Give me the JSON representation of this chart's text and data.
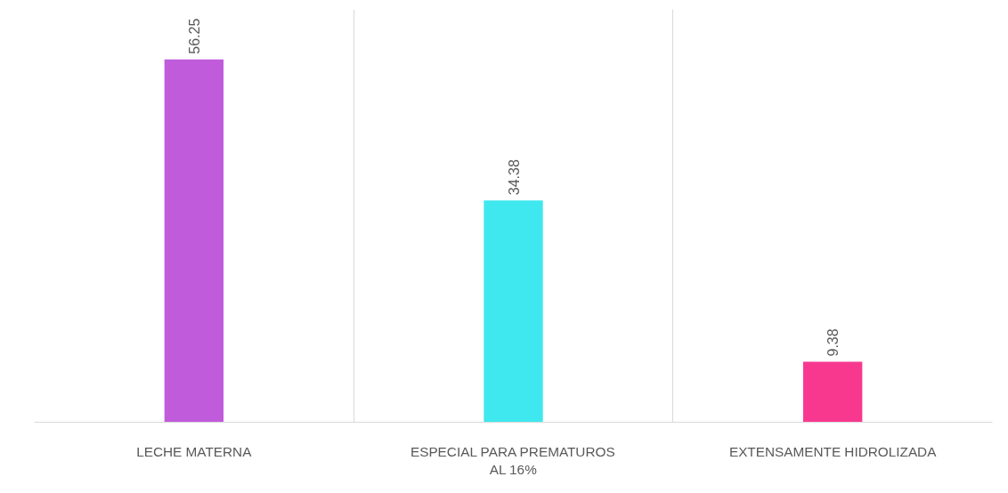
{
  "chart_data": {
    "type": "bar",
    "categories": [
      "LECHE MATERNA",
      "ESPECIAL PARA PREMATUROS AL 16%",
      "EXTENSAMENTE HIDROLIZADA"
    ],
    "values": [
      56.25,
      34.38,
      9.38
    ],
    "colors": [
      "#c05bdb",
      "#3fe8ee",
      "#f8388f"
    ],
    "ylim": [
      0,
      64
    ],
    "data_labels": true,
    "grid": "x"
  }
}
